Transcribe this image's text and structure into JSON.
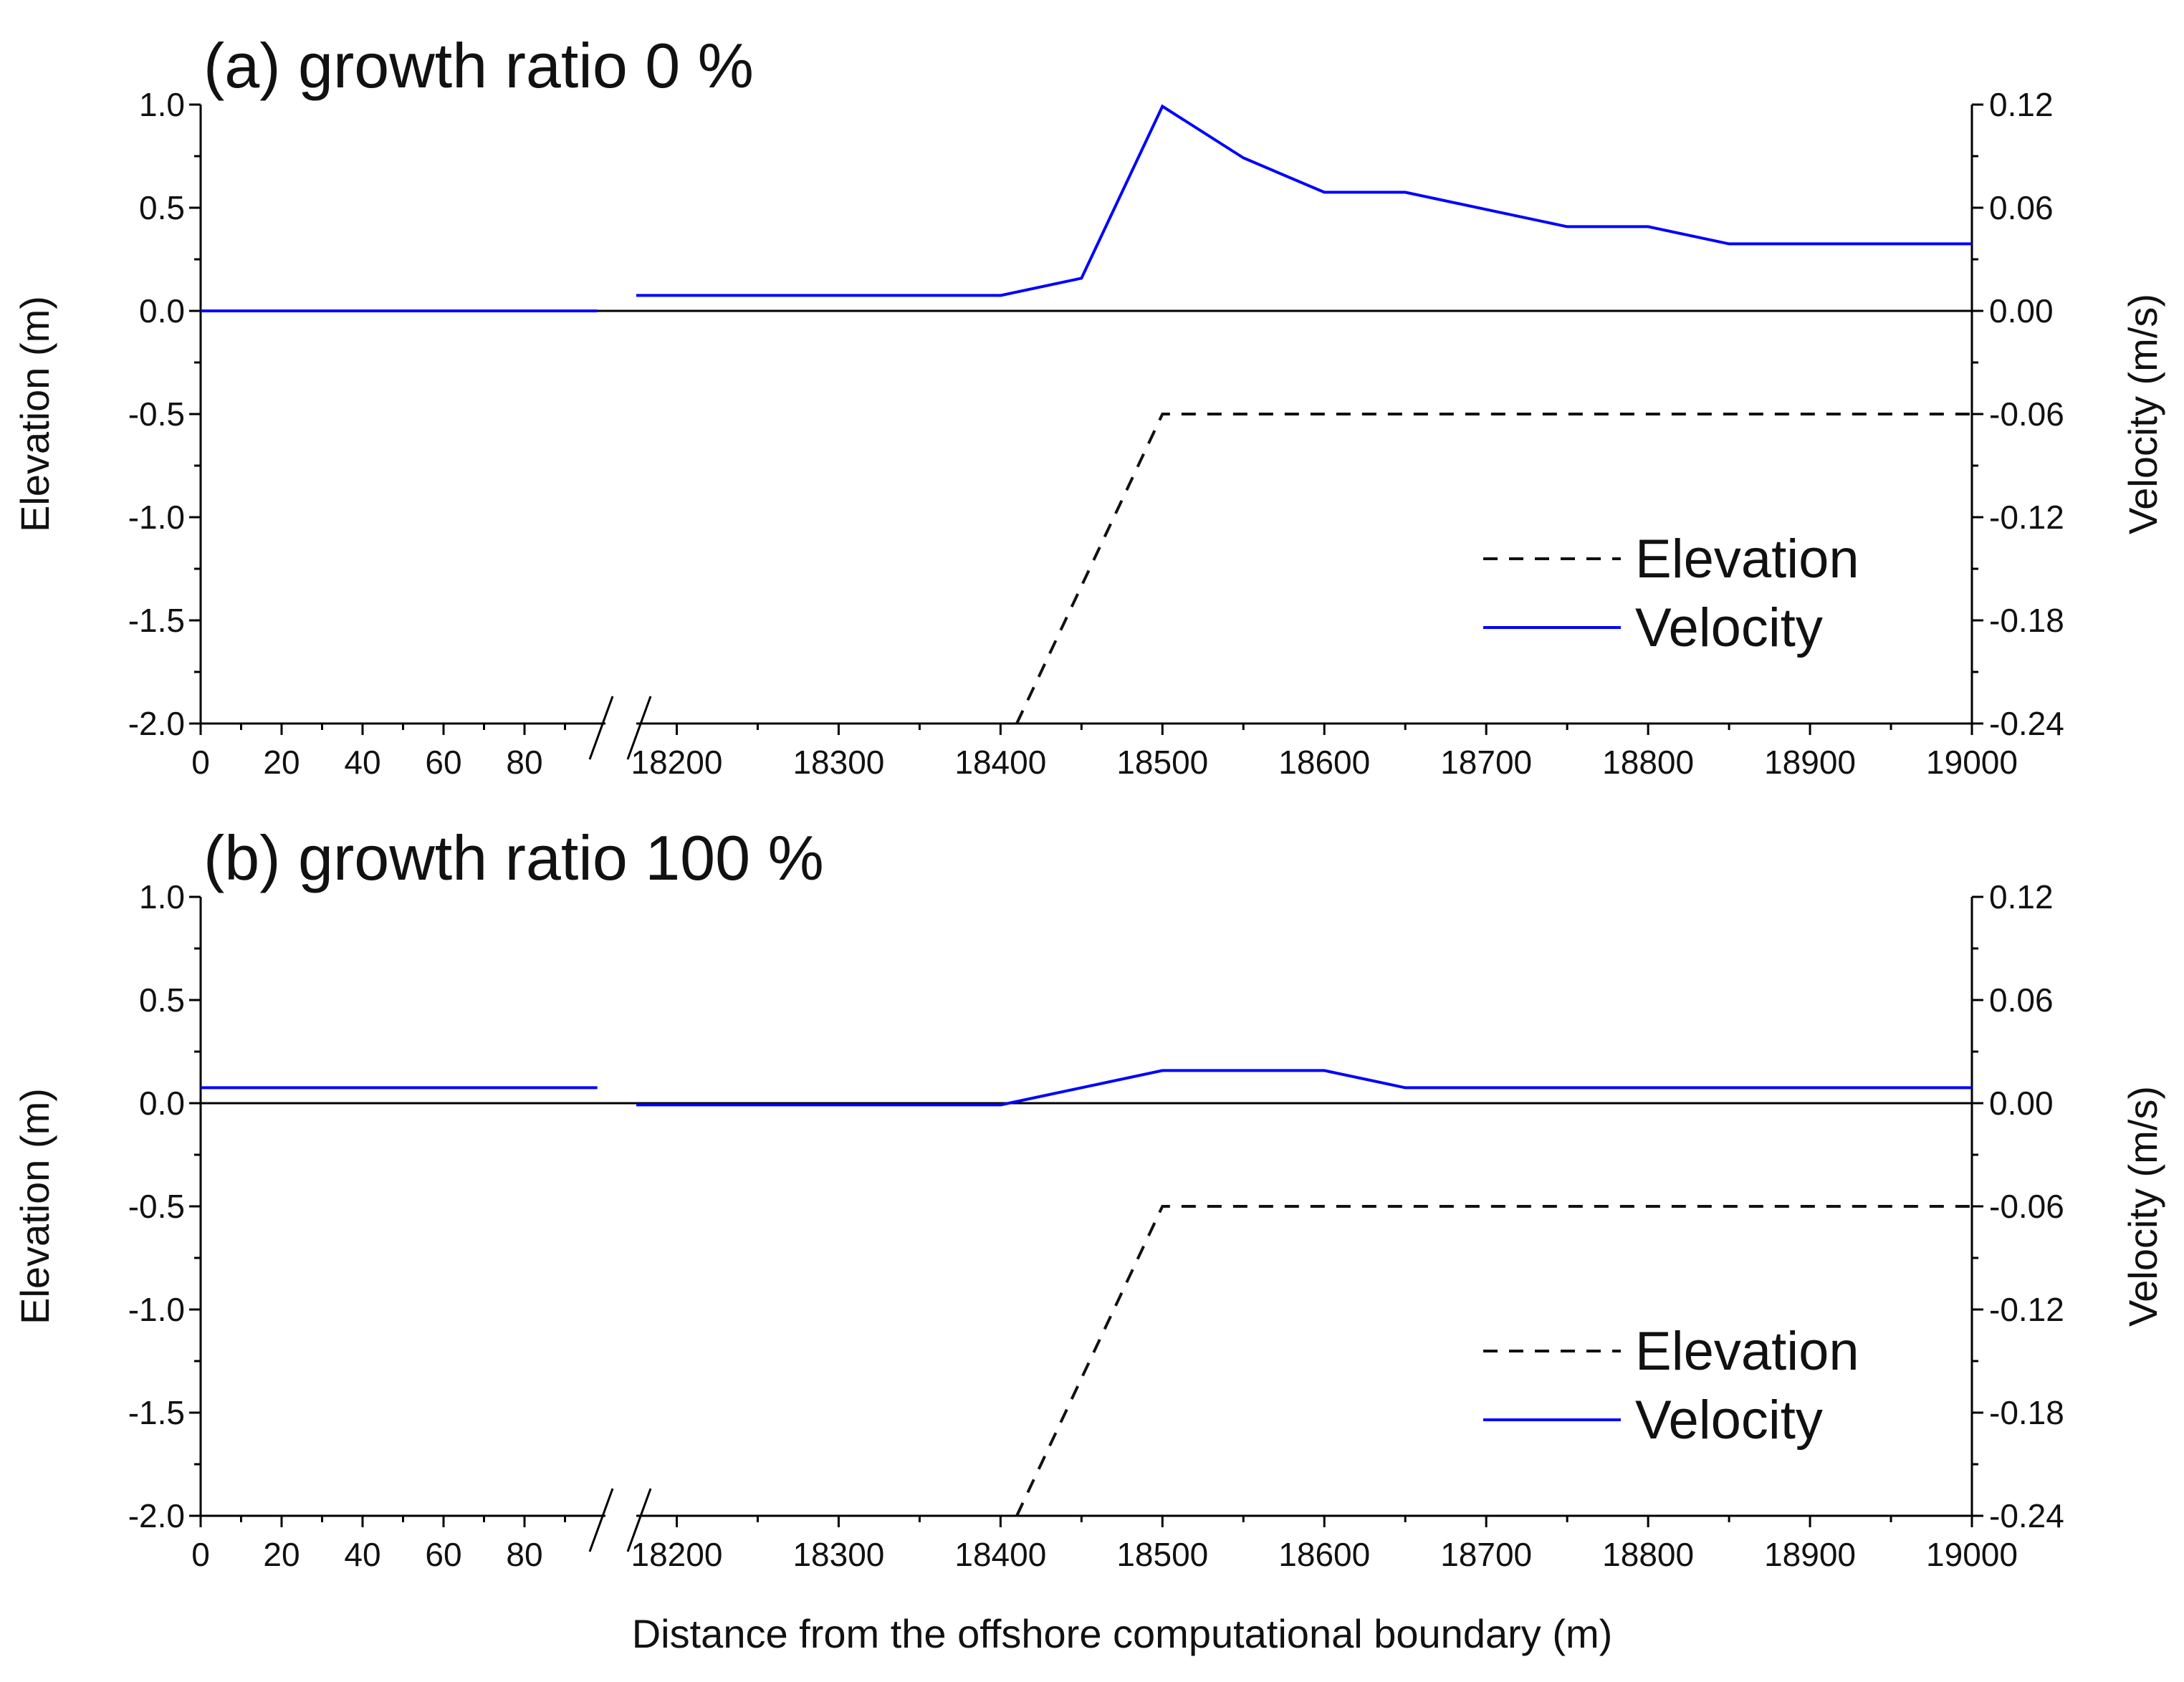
{
  "figure": {
    "xlabel": "Distance from the offshore computational boundary (m)",
    "ylabel_left": "Elevation (m)",
    "ylabel_right": "Velocity (m/s)"
  },
  "chart_data": [
    {
      "type": "line",
      "title": "(a) growth ratio 0 %",
      "xlabel": "Distance from the offshore computational boundary (m)",
      "ylabel": "Elevation (m)",
      "ylabel_right": "Velocity (m/s)",
      "x_axis": {
        "broken": true,
        "segment1": {
          "range": [
            0,
            100
          ],
          "ticks": [
            0,
            20,
            40,
            60,
            80
          ]
        },
        "segment2": {
          "range": [
            18175,
            19000
          ],
          "ticks": [
            18200,
            18300,
            18400,
            18500,
            18600,
            18700,
            18800,
            18900,
            19000
          ]
        }
      },
      "ylim": [
        -2.0,
        1.0
      ],
      "yticks": [
        "1.0",
        "0.5",
        "0.0",
        "-0.5",
        "-1.0",
        "-1.5",
        "-2.0"
      ],
      "y2lim": [
        -0.24,
        0.12
      ],
      "y2ticks": [
        "0.12",
        "0.06",
        "0.00",
        "-0.06",
        "-0.12",
        "-0.18",
        "-0.24"
      ],
      "legend": [
        "Elevation",
        "Velocity"
      ],
      "series": [
        {
          "name": "Elevation",
          "axis": "left",
          "style": "dashed",
          "color": "#111111",
          "points": [
            [
              18410,
              -2.0
            ],
            [
              18500,
              -0.5
            ],
            [
              19000,
              -0.5
            ]
          ]
        },
        {
          "name": "Velocity",
          "axis": "right",
          "style": "solid",
          "color": "#0000ff",
          "segment1": [
            [
              0,
              0.0
            ],
            [
              98,
              0.0
            ]
          ],
          "segment2": [
            [
              18175,
              0.009
            ],
            [
              18400,
              0.009
            ],
            [
              18450,
              0.019
            ],
            [
              18500,
              0.119
            ],
            [
              18550,
              0.089
            ],
            [
              18600,
              0.069
            ],
            [
              18650,
              0.069
            ],
            [
              18700,
              0.059
            ],
            [
              18750,
              0.049
            ],
            [
              18800,
              0.049
            ],
            [
              18850,
              0.039
            ],
            [
              19000,
              0.039
            ]
          ]
        }
      ]
    },
    {
      "type": "line",
      "title": "(b) growth ratio 100 %",
      "xlabel": "Distance from the offshore computational boundary (m)",
      "ylabel": "Elevation (m)",
      "ylabel_right": "Velocity (m/s)",
      "x_axis": {
        "broken": true,
        "segment1": {
          "range": [
            0,
            100
          ],
          "ticks": [
            0,
            20,
            40,
            60,
            80
          ]
        },
        "segment2": {
          "range": [
            18175,
            19000
          ],
          "ticks": [
            18200,
            18300,
            18400,
            18500,
            18600,
            18700,
            18800,
            18900,
            19000
          ]
        }
      },
      "ylim": [
        -2.0,
        1.0
      ],
      "yticks": [
        "1.0",
        "0.5",
        "0.0",
        "-0.5",
        "-1.0",
        "-1.5",
        "-2.0"
      ],
      "y2lim": [
        -0.24,
        0.12
      ],
      "y2ticks": [
        "0.12",
        "0.06",
        "0.00",
        "-0.06",
        "-0.12",
        "-0.18",
        "-0.24"
      ],
      "legend": [
        "Elevation",
        "Velocity"
      ],
      "series": [
        {
          "name": "Elevation",
          "axis": "left",
          "style": "dashed",
          "color": "#111111",
          "points": [
            [
              18410,
              -2.0
            ],
            [
              18500,
              -0.5
            ],
            [
              19000,
              -0.5
            ]
          ]
        },
        {
          "name": "Velocity",
          "axis": "right",
          "style": "solid",
          "color": "#0000ff",
          "segment1": [
            [
              0,
              0.009
            ],
            [
              98,
              0.009
            ]
          ],
          "segment2": [
            [
              18175,
              -0.001
            ],
            [
              18400,
              -0.001
            ],
            [
              18450,
              0.009
            ],
            [
              18500,
              0.019
            ],
            [
              18600,
              0.019
            ],
            [
              18650,
              0.009
            ],
            [
              19000,
              0.009
            ]
          ]
        }
      ]
    }
  ]
}
